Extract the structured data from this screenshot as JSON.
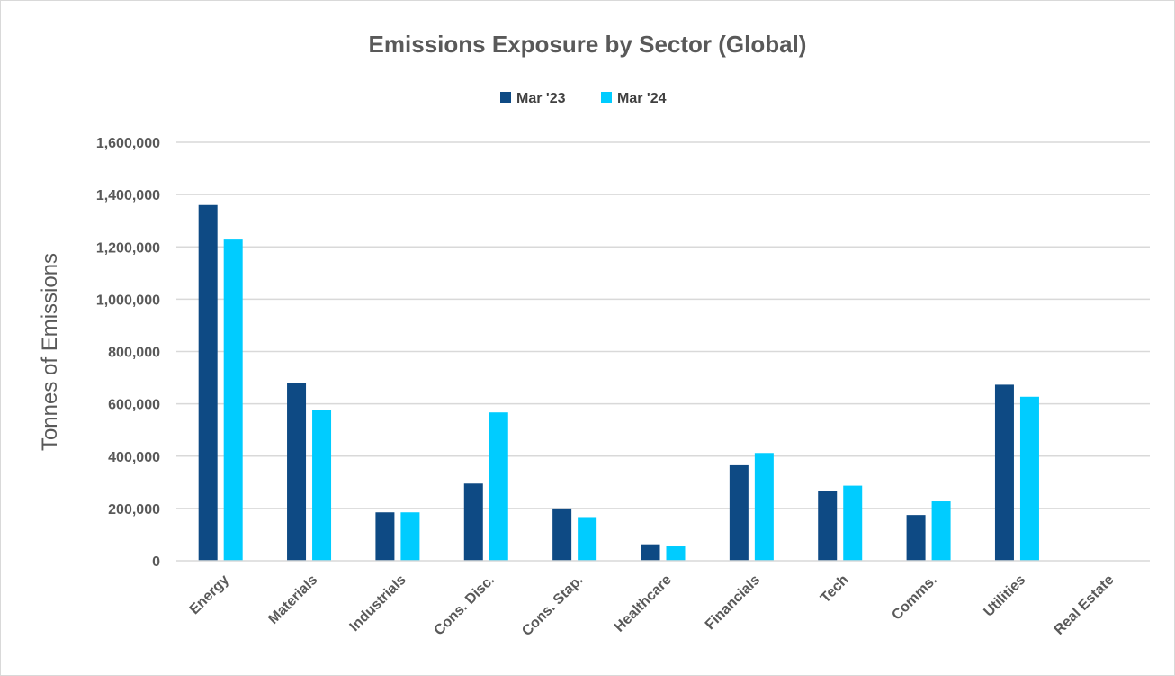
{
  "chart_data": {
    "type": "bar",
    "title": "Emissions Exposure by Sector (Global)",
    "xlabel": "",
    "ylabel": "Tonnes of Emissions",
    "ylim": [
      0,
      1600000
    ],
    "yticks": [
      0,
      200000,
      400000,
      600000,
      800000,
      1000000,
      1200000,
      1400000,
      1600000
    ],
    "ytick_labels": [
      "0",
      "200,000",
      "400,000",
      "600,000",
      "800,000",
      "1,000,000",
      "1,200,000",
      "1,400,000",
      "1,600,000"
    ],
    "grid": true,
    "legend_position": "top",
    "categories": [
      "Energy",
      "Materials",
      "Industrials",
      "Cons. Disc.",
      "Cons. Stap.",
      "Healthcare",
      "Financials",
      "Tech",
      "Comms.",
      "Utilities",
      "Real Estate"
    ],
    "series": [
      {
        "name": "Mar '23",
        "color": "#0e4a84",
        "values": [
          1360000,
          678000,
          185000,
          295000,
          200000,
          63000,
          365000,
          265000,
          175000,
          673000,
          0
        ]
      },
      {
        "name": "Mar '24",
        "color": "#00ccff",
        "values": [
          1228000,
          575000,
          185000,
          567000,
          167000,
          55000,
          412000,
          287000,
          227000,
          627000,
          0
        ]
      }
    ]
  }
}
